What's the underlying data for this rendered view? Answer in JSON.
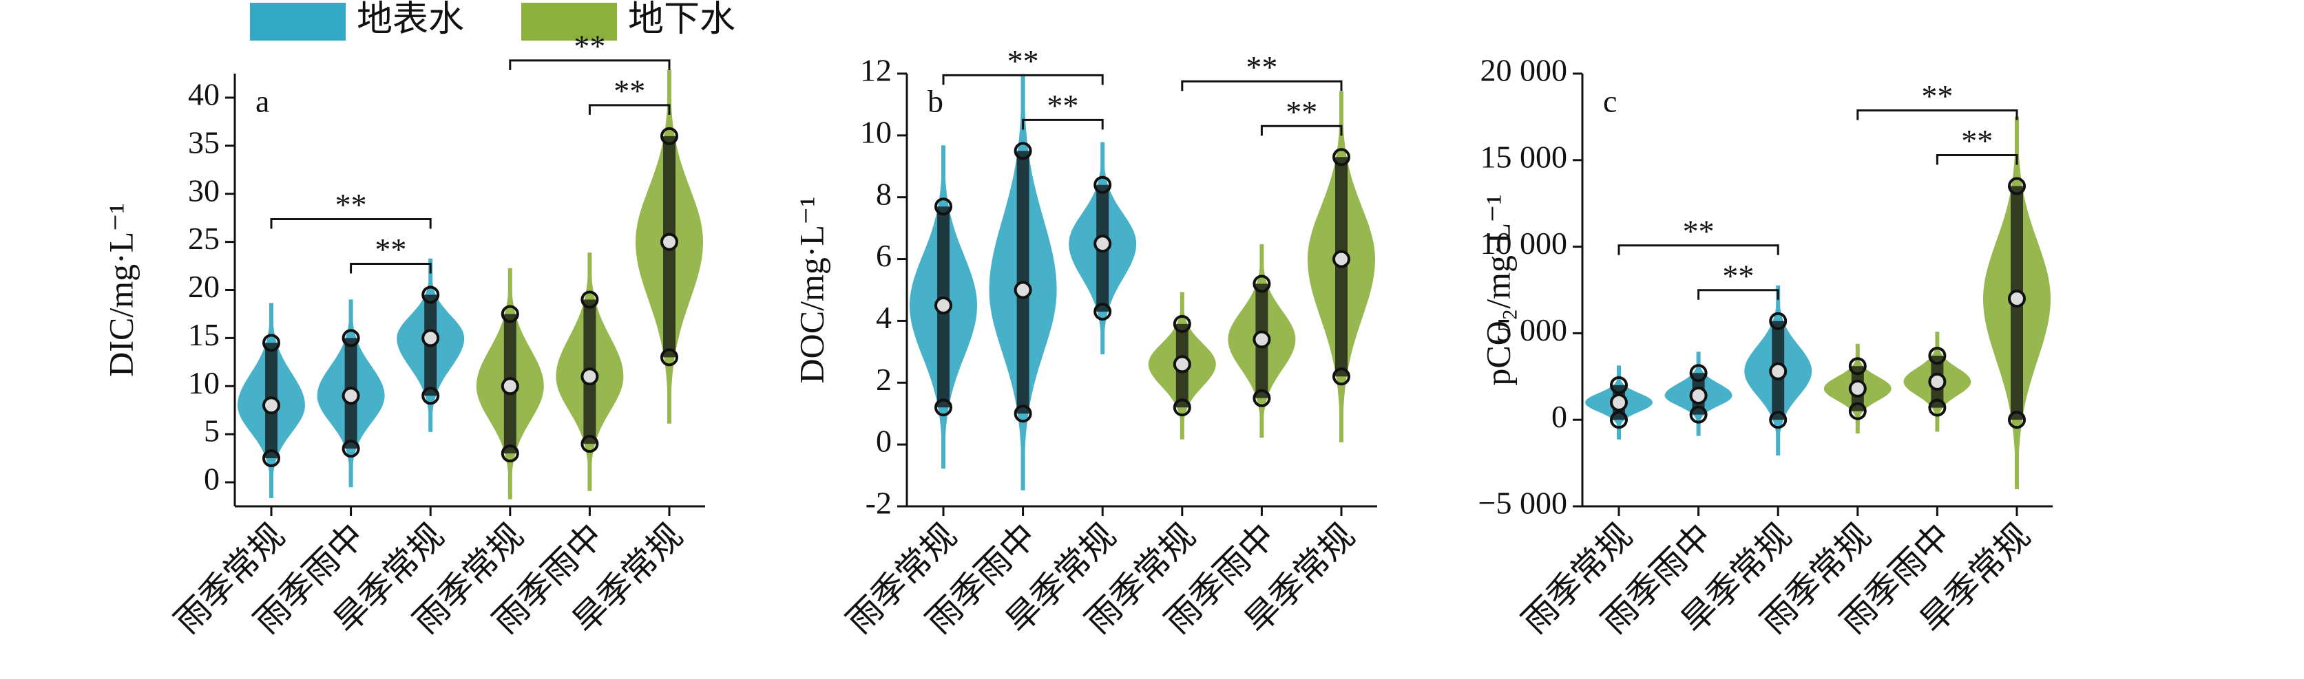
{
  "legend": [
    {
      "name": "地表水",
      "color": "#34a9c4"
    },
    {
      "name": "地下水",
      "color": "#8cb03c"
    }
  ],
  "chart_data": [
    {
      "type": "violin",
      "label": "a",
      "ylabel": "DIC/mg·L⁻¹",
      "categories": [
        "雨季常规",
        "雨季雨中",
        "旱季常规",
        "雨季常规",
        "雨季雨中",
        "旱季常规"
      ],
      "series": [
        {
          "min": [
            2.5,
            3.5,
            9
          ],
          "median": [
            8,
            9,
            15
          ],
          "max": [
            14.5,
            15,
            19.5
          ]
        },
        {
          "min": [
            3,
            4,
            13
          ],
          "median": [
            10,
            11,
            25
          ],
          "max": [
            17.5,
            19,
            36
          ]
        }
      ],
      "brackets": [
        {
          "label": "**",
          "span": [
            0,
            2
          ]
        },
        {
          "label": "**",
          "span": [
            1,
            2
          ]
        },
        {
          "label": "**",
          "span": [
            3,
            5
          ]
        },
        {
          "label": "**",
          "span": [
            4,
            5
          ]
        }
      ],
      "ylim": [
        -2.5,
        42.5
      ],
      "yticks": [
        0,
        5,
        10,
        15,
        20,
        25,
        30,
        35,
        40
      ]
    },
    {
      "type": "violin",
      "label": "b",
      "ylabel": "DOC/mg·L⁻¹",
      "categories": [
        "雨季常规",
        "雨季雨中",
        "旱季常规",
        "雨季常规",
        "雨季雨中",
        "旱季常规"
      ],
      "series": [
        {
          "min": [
            1.2,
            1,
            4.3
          ],
          "median": [
            4.5,
            5,
            6.5
          ],
          "max": [
            7.7,
            9.5,
            8.4
          ]
        },
        {
          "min": [
            1.2,
            1.5,
            2.2
          ],
          "median": [
            2.6,
            3.4,
            6
          ],
          "max": [
            3.9,
            5.2,
            9.3
          ]
        }
      ],
      "brackets": [
        {
          "label": "**",
          "span": [
            0,
            2
          ]
        },
        {
          "label": "**",
          "span": [
            1,
            2
          ]
        },
        {
          "label": "**",
          "span": [
            3,
            5
          ]
        },
        {
          "label": "**",
          "span": [
            4,
            5
          ]
        }
      ],
      "ylim": [
        -2,
        12
      ],
      "yticks": [
        -2,
        0,
        2,
        4,
        6,
        8,
        10,
        12
      ]
    },
    {
      "type": "violin",
      "label": "c",
      "ylabel": "pCO₂/mg·L⁻¹",
      "categories": [
        "雨季常规",
        "雨季雨中",
        "旱季常规",
        "雨季常规",
        "雨季雨中",
        "旱季常规"
      ],
      "series": [
        {
          "min": [
            0,
            300,
            0
          ],
          "median": [
            1000,
            1400,
            2800
          ],
          "max": [
            2000,
            2700,
            5700
          ]
        },
        {
          "min": [
            500,
            700,
            0
          ],
          "median": [
            1800,
            2200,
            7000
          ],
          "max": [
            3100,
            3700,
            13500
          ]
        }
      ],
      "brackets": [
        {
          "label": "**",
          "span": [
            0,
            2
          ]
        },
        {
          "label": "**",
          "span": [
            1,
            2
          ]
        },
        {
          "label": "**",
          "span": [
            3,
            5
          ]
        },
        {
          "label": "**",
          "span": [
            4,
            5
          ]
        }
      ],
      "ylim": [
        -5000,
        20000
      ],
      "yticks": [
        {
          "value": -5000,
          "label": "−5 000"
        },
        0,
        {
          "value": 5000,
          "label": "5 000"
        },
        {
          "value": 10000,
          "label": "10 000"
        },
        {
          "value": 15000,
          "label": "15 000"
        },
        {
          "value": 20000,
          "label": "20 000"
        }
      ]
    }
  ]
}
